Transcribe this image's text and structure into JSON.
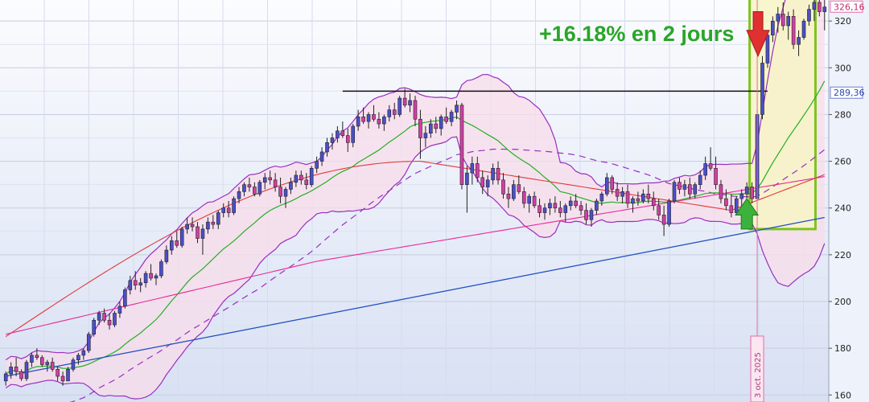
{
  "chart_data": {
    "type": "candlestick",
    "title": "",
    "xlabel": "",
    "ylabel": "",
    "ylim": [
      157,
      329
    ],
    "yticks": [
      160,
      180,
      200,
      220,
      240,
      260,
      280,
      300,
      320
    ],
    "ytick_labels": [
      "160",
      "180",
      "200",
      "220",
      "240",
      "260",
      "280",
      "300",
      "320"
    ],
    "grid": true,
    "colors": {
      "up": "#4b4fc9",
      "down": "#d23fa4",
      "sma_short": "#22b022",
      "sma_mid": "#e03a3a",
      "sma_long": "#e8299a",
      "sma_xlong": "#1f4fc0",
      "bollinger": "#9a2fc0",
      "bollinger_fill": "#f8dcea",
      "highlight_box": "#7cc41c",
      "highlight_fill": "#f7f4c4",
      "annotation": "#2aa52a",
      "arrow_up": "#3cb23c",
      "arrow_down": "#e03030"
    },
    "candles": [
      [
        166,
        170,
        164,
        169
      ],
      [
        169,
        174,
        167,
        172
      ],
      [
        172,
        176,
        168,
        170
      ],
      [
        170,
        171,
        166,
        167
      ],
      [
        167,
        175,
        166,
        174
      ],
      [
        174,
        178,
        172,
        177
      ],
      [
        177,
        180,
        175,
        176
      ],
      [
        176,
        177,
        172,
        173
      ],
      [
        173,
        175,
        170,
        174
      ],
      [
        174,
        176,
        170,
        171
      ],
      [
        171,
        172,
        166,
        168
      ],
      [
        168,
        170,
        164,
        166
      ],
      [
        166,
        172,
        166,
        171
      ],
      [
        171,
        176,
        170,
        175
      ],
      [
        175,
        178,
        173,
        177
      ],
      [
        177,
        180,
        175,
        179
      ],
      [
        179,
        187,
        178,
        186
      ],
      [
        186,
        193,
        185,
        192
      ],
      [
        192,
        196,
        190,
        195
      ],
      [
        195,
        197,
        191,
        192
      ],
      [
        192,
        195,
        188,
        190
      ],
      [
        190,
        196,
        189,
        195
      ],
      [
        195,
        200,
        193,
        198
      ],
      [
        198,
        206,
        197,
        205
      ],
      [
        205,
        211,
        203,
        209
      ],
      [
        209,
        213,
        205,
        207
      ],
      [
        207,
        210,
        204,
        208
      ],
      [
        208,
        213,
        206,
        212
      ],
      [
        212,
        216,
        209,
        210
      ],
      [
        210,
        212,
        207,
        211
      ],
      [
        211,
        218,
        210,
        217
      ],
      [
        217,
        224,
        216,
        222
      ],
      [
        222,
        228,
        220,
        226
      ],
      [
        226,
        230,
        223,
        224
      ],
      [
        224,
        232,
        223,
        231
      ],
      [
        231,
        236,
        229,
        233
      ],
      [
        233,
        236,
        230,
        232
      ],
      [
        232,
        234,
        225,
        227
      ],
      [
        227,
        233,
        220,
        231
      ],
      [
        231,
        236,
        229,
        234
      ],
      [
        234,
        237,
        231,
        233
      ],
      [
        233,
        239,
        231,
        238
      ],
      [
        238,
        242,
        236,
        240
      ],
      [
        240,
        243,
        236,
        238
      ],
      [
        238,
        245,
        237,
        244
      ],
      [
        244,
        249,
        242,
        247
      ],
      [
        247,
        251,
        245,
        250
      ],
      [
        250,
        253,
        247,
        249
      ],
      [
        249,
        251,
        245,
        246
      ],
      [
        246,
        252,
        245,
        251
      ],
      [
        251,
        255,
        248,
        253
      ],
      [
        253,
        256,
        250,
        252
      ],
      [
        252,
        255,
        247,
        249
      ],
      [
        249,
        253,
        242,
        245
      ],
      [
        245,
        249,
        240,
        248
      ],
      [
        248,
        253,
        246,
        251
      ],
      [
        251,
        256,
        249,
        254
      ],
      [
        254,
        256,
        250,
        252
      ],
      [
        252,
        255,
        248,
        250
      ],
      [
        250,
        258,
        249,
        257
      ],
      [
        257,
        262,
        255,
        260
      ],
      [
        260,
        266,
        258,
        264
      ],
      [
        264,
        270,
        262,
        268
      ],
      [
        268,
        272,
        265,
        270
      ],
      [
        270,
        275,
        268,
        273
      ],
      [
        273,
        277,
        270,
        271
      ],
      [
        271,
        274,
        264,
        268
      ],
      [
        268,
        276,
        266,
        275
      ],
      [
        275,
        282,
        273,
        279
      ],
      [
        279,
        283,
        276,
        277
      ],
      [
        277,
        281,
        274,
        280
      ],
      [
        280,
        284,
        277,
        278
      ],
      [
        278,
        281,
        274,
        276
      ],
      [
        276,
        280,
        273,
        279
      ],
      [
        279,
        284,
        277,
        282
      ],
      [
        282,
        285,
        278,
        280
      ],
      [
        280,
        288,
        279,
        287
      ],
      [
        287,
        291,
        283,
        284
      ],
      [
        284,
        289,
        281,
        286
      ],
      [
        286,
        288,
        275,
        278
      ],
      [
        278,
        282,
        261,
        270
      ],
      [
        270,
        275,
        266,
        272
      ],
      [
        272,
        278,
        270,
        276
      ],
      [
        276,
        279,
        272,
        274
      ],
      [
        274,
        280,
        271,
        279
      ],
      [
        279,
        283,
        276,
        277
      ],
      [
        277,
        282,
        275,
        281
      ],
      [
        281,
        286,
        278,
        284
      ],
      [
        284,
        285,
        248,
        250
      ],
      [
        250,
        258,
        238,
        255
      ],
      [
        255,
        262,
        250,
        259
      ],
      [
        259,
        262,
        251,
        253
      ],
      [
        253,
        256,
        246,
        249
      ],
      [
        249,
        254,
        245,
        252
      ],
      [
        252,
        259,
        250,
        257
      ],
      [
        257,
        260,
        250,
        252
      ],
      [
        252,
        255,
        244,
        246
      ],
      [
        246,
        249,
        240,
        244
      ],
      [
        244,
        252,
        243,
        250
      ],
      [
        250,
        254,
        246,
        247
      ],
      [
        247,
        249,
        240,
        242
      ],
      [
        242,
        246,
        238,
        245
      ],
      [
        245,
        247,
        240,
        241
      ],
      [
        241,
        244,
        236,
        238
      ],
      [
        238,
        242,
        235,
        240
      ],
      [
        240,
        244,
        237,
        242
      ],
      [
        242,
        245,
        238,
        240
      ],
      [
        240,
        243,
        236,
        238
      ],
      [
        238,
        242,
        234,
        241
      ],
      [
        241,
        245,
        239,
        243
      ],
      [
        243,
        246,
        240,
        241
      ],
      [
        241,
        243,
        237,
        239
      ],
      [
        239,
        242,
        233,
        235
      ],
      [
        235,
        240,
        232,
        239
      ],
      [
        239,
        244,
        237,
        243
      ],
      [
        243,
        247,
        241,
        246
      ],
      [
        246,
        255,
        245,
        253
      ],
      [
        253,
        254,
        246,
        248
      ],
      [
        248,
        251,
        243,
        245
      ],
      [
        245,
        249,
        242,
        247
      ],
      [
        247,
        250,
        240,
        242
      ],
      [
        242,
        245,
        238,
        244
      ],
      [
        244,
        247,
        241,
        243
      ],
      [
        243,
        248,
        242,
        246
      ],
      [
        246,
        250,
        242,
        244
      ],
      [
        244,
        247,
        239,
        241
      ],
      [
        241,
        244,
        235,
        237
      ],
      [
        237,
        241,
        228,
        233
      ],
      [
        233,
        244,
        232,
        243
      ],
      [
        243,
        252,
        242,
        251
      ],
      [
        251,
        253,
        246,
        248
      ],
      [
        248,
        252,
        245,
        250
      ],
      [
        250,
        253,
        244,
        246
      ],
      [
        246,
        251,
        244,
        250
      ],
      [
        250,
        256,
        248,
        254
      ],
      [
        254,
        262,
        252,
        259
      ],
      [
        259,
        266,
        256,
        257
      ],
      [
        257,
        262,
        248,
        250
      ],
      [
        250,
        252,
        242,
        244
      ],
      [
        244,
        248,
        239,
        241
      ],
      [
        241,
        246,
        236,
        238
      ],
      [
        238,
        245,
        237,
        244
      ],
      [
        244,
        248,
        240,
        246
      ],
      [
        246,
        251,
        244,
        249
      ],
      [
        249,
        251,
        242,
        244
      ],
      [
        244,
        282,
        244,
        280
      ],
      [
        280,
        305,
        278,
        302
      ],
      [
        302,
        316,
        300,
        314
      ],
      [
        314,
        322,
        311,
        320
      ],
      [
        320,
        326,
        315,
        323
      ],
      [
        323,
        328,
        316,
        318
      ],
      [
        318,
        324,
        312,
        322
      ],
      [
        322,
        325,
        308,
        310
      ],
      [
        310,
        316,
        305,
        313
      ],
      [
        313,
        321,
        312,
        320
      ],
      [
        320,
        327,
        318,
        325
      ],
      [
        325,
        330,
        320,
        328
      ],
      [
        328,
        330,
        322,
        324
      ],
      [
        324,
        329,
        316,
        326
      ]
    ],
    "annotations": {
      "main_text": "+16.18% en 2 jours",
      "date_label": "3 oct. 2025",
      "last_price_label": "326,16",
      "mid_price_label": "289,36"
    }
  }
}
